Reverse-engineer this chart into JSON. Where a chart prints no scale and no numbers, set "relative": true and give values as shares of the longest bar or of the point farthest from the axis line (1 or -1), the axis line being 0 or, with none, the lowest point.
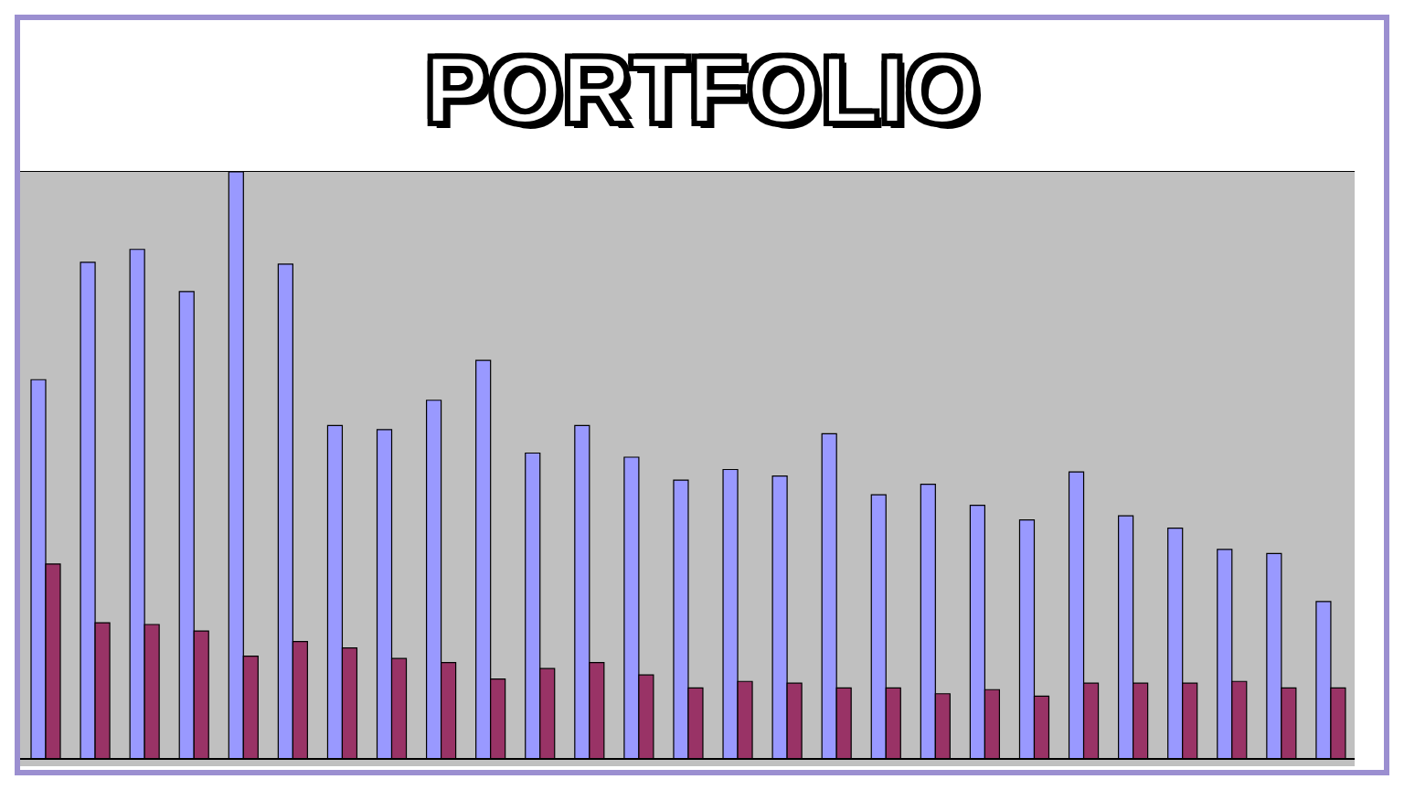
{
  "chart_data": {
    "type": "bar",
    "title": "PORTFOLIO",
    "relative": true,
    "grid": "y",
    "categories": [
      null,
      null,
      null,
      null,
      null,
      null,
      null,
      null,
      null,
      null,
      null,
      null,
      null,
      null,
      null,
      null,
      null,
      null,
      null,
      null,
      null,
      null,
      null,
      null,
      null,
      null,
      null
    ],
    "series": [
      {
        "color": "#9999ff",
        "values": [
          0.646,
          0.846,
          0.868,
          0.796,
          1,
          0.843,
          0.568,
          0.561,
          0.611,
          0.679,
          0.521,
          0.568,
          0.514,
          0.475,
          0.493,
          0.482,
          0.554,
          0.45,
          0.468,
          0.432,
          0.407,
          0.489,
          0.414,
          0.393,
          0.357,
          0.35,
          0.268
        ]
      },
      {
        "color": "#993366",
        "values": [
          0.332,
          0.232,
          0.229,
          0.218,
          0.175,
          0.2,
          0.189,
          0.171,
          0.164,
          0.136,
          0.154,
          0.164,
          0.143,
          0.121,
          0.132,
          0.129,
          0.121,
          0.121,
          0.111,
          0.118,
          0.107,
          0.129,
          0.129,
          0.129,
          0.132,
          0.121,
          0.121
        ]
      }
    ]
  }
}
